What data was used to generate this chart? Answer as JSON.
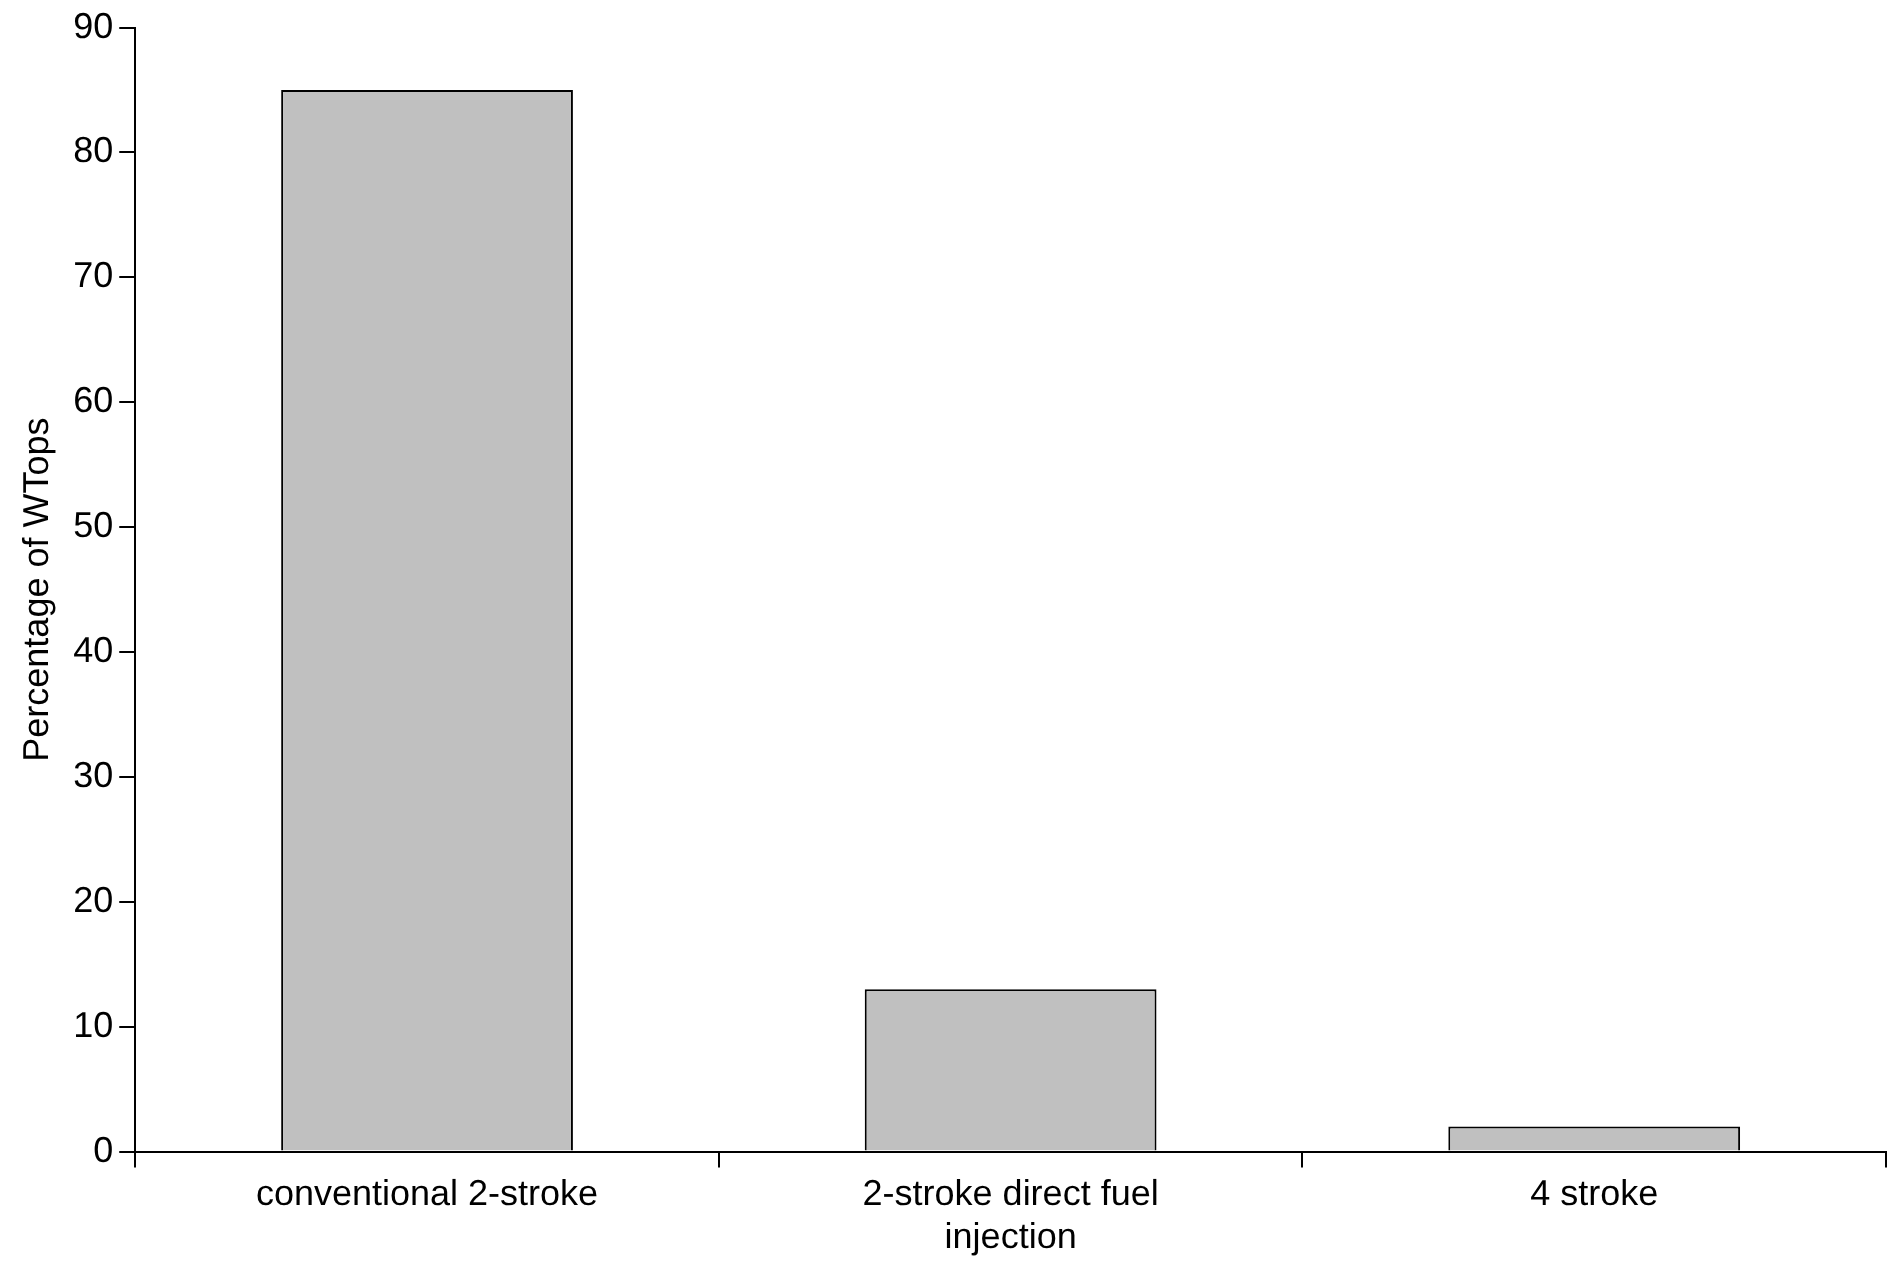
{
  "chart_data": {
    "type": "bar",
    "ylabel": "Percentage of WTops",
    "categories": [
      "conventional 2-stroke",
      "2-stroke direct fuel injection",
      "4 stroke"
    ],
    "values": [
      85,
      13,
      2
    ],
    "color": "#c0c0c0",
    "ylim": [
      0,
      90
    ],
    "yticks": [
      0,
      10,
      20,
      30,
      40,
      50,
      60,
      70,
      80,
      90
    ],
    "grid": false,
    "legend": false
  }
}
